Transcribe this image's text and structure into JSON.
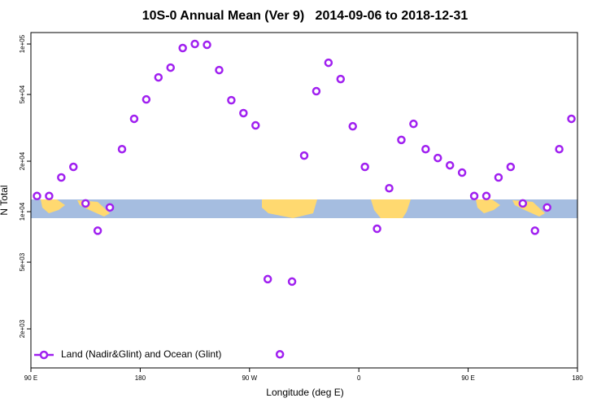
{
  "chart_data": {
    "type": "scatter",
    "title": "10S-0 Annual Mean (Ver 9)   2014-09-06 to 2018-12-31",
    "x_label": "Longitude (deg E)",
    "y_label": "N Total",
    "series": [
      {
        "name": "Land (Nadir&Glint) and Ocean (Glint)",
        "color": "#a020f0",
        "x": [
          95,
          105,
          115,
          125,
          135,
          145,
          155,
          165,
          175,
          185,
          195,
          205,
          215,
          225,
          235,
          245,
          255,
          265,
          275,
          285,
          295,
          305,
          315,
          325,
          335,
          345,
          355,
          365,
          375,
          385,
          395,
          405,
          415,
          425,
          435,
          445,
          455,
          465,
          475,
          485,
          495,
          505,
          515,
          525,
          535
        ],
        "values": [
          12400,
          12400,
          16000,
          18500,
          11200,
          7700,
          10600,
          23600,
          35800,
          46700,
          63200,
          72300,
          94600,
          100000,
          98900,
          69900,
          46200,
          38700,
          32700,
          3960,
          1410,
          3830,
          21600,
          52300,
          77300,
          61800,
          32300,
          18500,
          7910,
          13800,
          26800,
          33400,
          23600,
          20900,
          18900,
          17100,
          12400,
          12400,
          16000,
          18500,
          11200,
          7700,
          10600,
          23600,
          35800
        ]
      }
    ],
    "xlim": [
      90,
      540
    ],
    "xticks": [
      {
        "value": 90,
        "label": "90 E"
      },
      {
        "value": 180,
        "label": "180"
      },
      {
        "value": 270,
        "label": "90 W"
      },
      {
        "value": 360,
        "label": "0"
      },
      {
        "value": 450,
        "label": "90 E"
      },
      {
        "value": 540,
        "label": "180"
      }
    ],
    "ylim": [
      1170,
      117000
    ],
    "ylog": true,
    "yticks": [
      {
        "value": 2000,
        "label": "2e+03"
      },
      {
        "value": 5000,
        "label": "5e+03"
      },
      {
        "value": 10000,
        "label": "1e+04"
      },
      {
        "value": 20000,
        "label": "2e+04"
      },
      {
        "value": 50000,
        "label": "5e+04"
      },
      {
        "value": 100000,
        "label": "1e+05"
      }
    ],
    "legend": "lower left"
  }
}
